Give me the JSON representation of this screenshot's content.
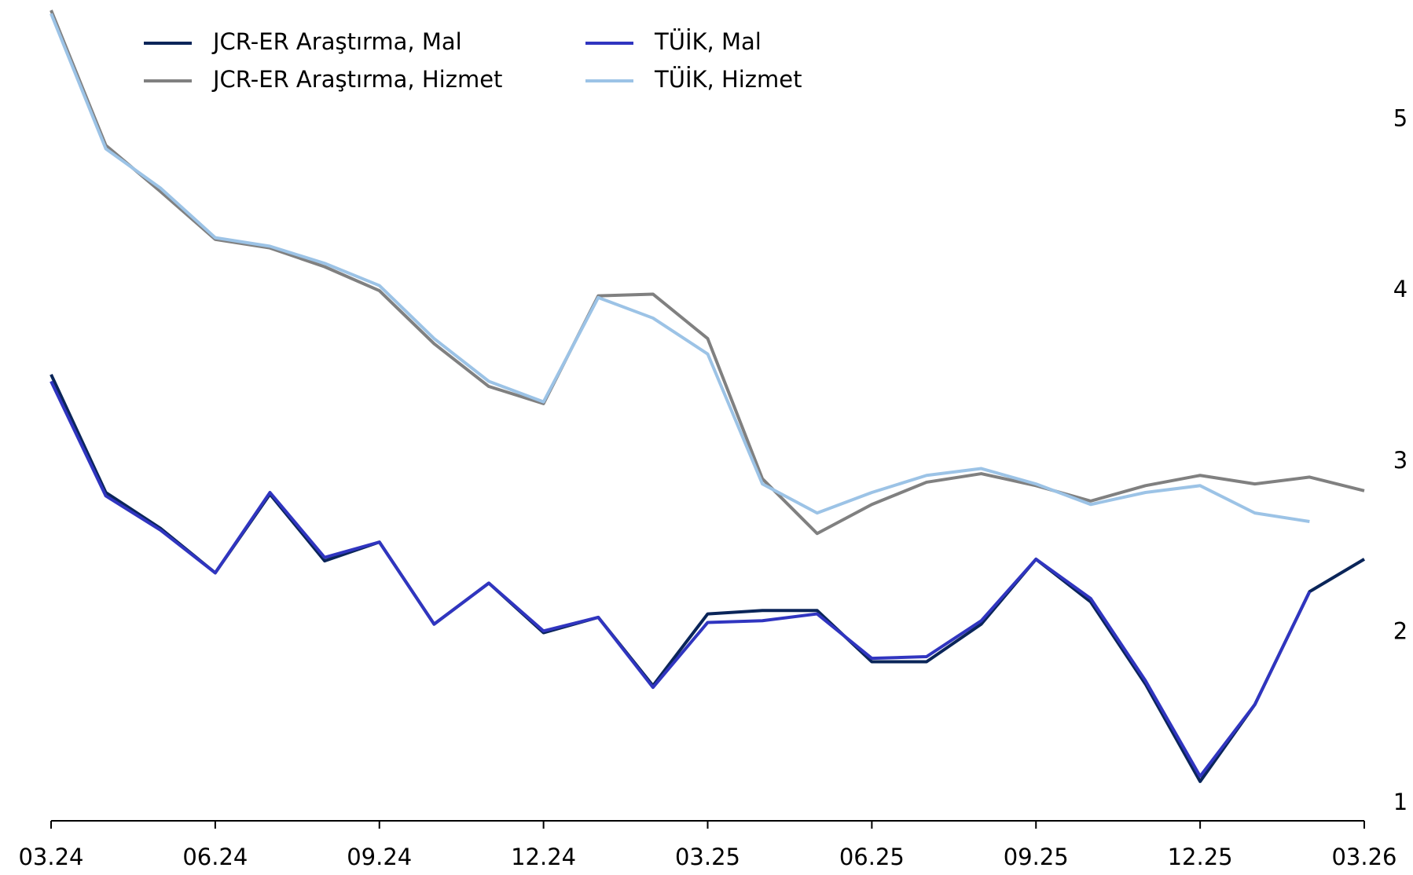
{
  "chart_data": {
    "type": "line",
    "categories": [
      "03.24",
      null,
      null,
      "06.24",
      null,
      null,
      "09.24",
      null,
      null,
      "12.24",
      null,
      null,
      "03.25",
      null,
      null,
      "06.25",
      null,
      null,
      "09.25",
      null,
      null,
      "12.25",
      null,
      null,
      "03.26"
    ],
    "series": [
      {
        "name": "JCR-ER Araştırma, Mal",
        "color": "#0a2559",
        "values": [
          3.51,
          2.82,
          2.61,
          2.35,
          2.81,
          2.42,
          2.53,
          2.05,
          2.29,
          2.0,
          2.09,
          1.69,
          2.11,
          2.13,
          2.13,
          1.83,
          1.83,
          2.05,
          2.43,
          2.18,
          1.7,
          1.13,
          1.58,
          2.24,
          2.43
        ]
      },
      {
        "name": "JCR-ER Araştırma, Hizmet",
        "color": "#808080",
        "values": [
          5.64,
          4.85,
          4.58,
          4.3,
          4.25,
          4.14,
          4.0,
          3.69,
          3.44,
          3.34,
          3.97,
          3.98,
          3.72,
          2.9,
          2.58,
          2.75,
          2.88,
          2.93,
          2.86,
          2.77,
          2.86,
          2.92,
          2.87,
          2.91,
          2.83
        ]
      },
      {
        "name": "TÜİK, Mal",
        "color": "#3035c0",
        "values": [
          3.47,
          2.8,
          2.6,
          2.35,
          2.82,
          2.44,
          2.53,
          2.05,
          2.29,
          2.01,
          2.09,
          1.68,
          2.06,
          2.07,
          2.11,
          1.85,
          1.86,
          2.07,
          2.43,
          2.2,
          1.72,
          1.16,
          1.58,
          2.24,
          null
        ]
      },
      {
        "name": "TÜİK, Hizmet",
        "color": "#9cc3e6",
        "values": [
          5.62,
          4.83,
          4.6,
          4.31,
          4.26,
          4.16,
          4.03,
          3.72,
          3.47,
          3.35,
          3.96,
          3.84,
          3.63,
          2.87,
          2.7,
          2.82,
          2.92,
          2.96,
          2.87,
          2.75,
          2.82,
          2.86,
          2.7,
          2.65,
          null
        ]
      }
    ],
    "ylim": [
      0.9,
      5.7
    ],
    "yticks": [
      1,
      2,
      3,
      4,
      5
    ],
    "y_axis_side": "right",
    "grid": false,
    "legend_loc": "upper left",
    "legend_columns": 2
  }
}
